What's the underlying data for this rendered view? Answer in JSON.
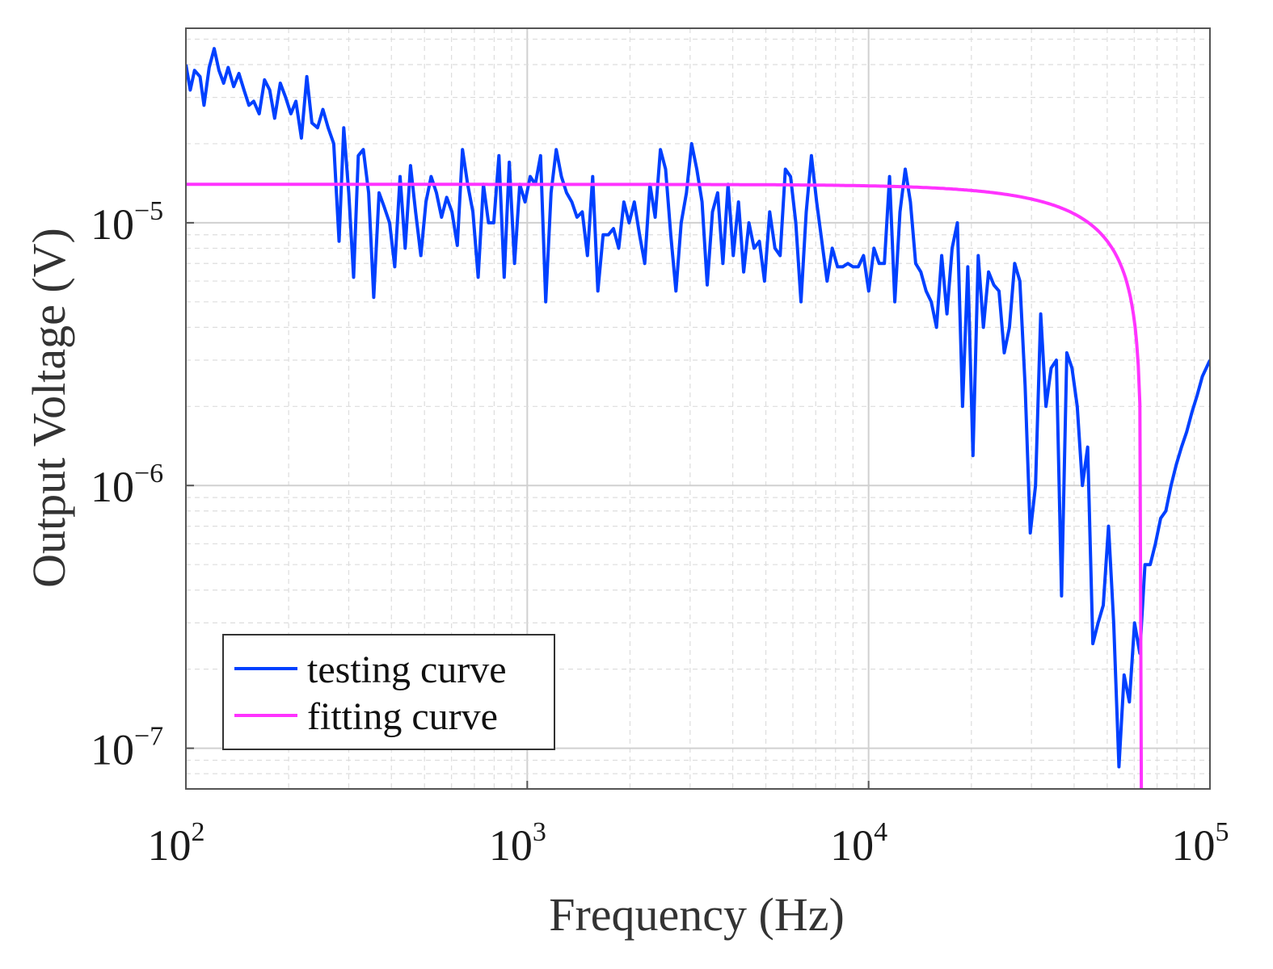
{
  "chart_data": {
    "type": "line",
    "title": "",
    "xlabel": "Frequency (Hz)",
    "ylabel": "Output Voltage (V)",
    "xscale": "log",
    "yscale": "log",
    "xlim": [
      100,
      100000
    ],
    "ylim": [
      7e-08,
      5.5e-05
    ],
    "grid": true,
    "legend_position": "bottom-left",
    "x_ticks": [
      {
        "value": 100,
        "base": "10",
        "exp": "2"
      },
      {
        "value": 1000,
        "base": "10",
        "exp": "3"
      },
      {
        "value": 10000,
        "base": "10",
        "exp": "4"
      },
      {
        "value": 100000,
        "base": "10",
        "exp": "5"
      }
    ],
    "y_ticks": [
      {
        "value": 1e-07,
        "base": "10",
        "exp": "−7"
      },
      {
        "value": 1e-06,
        "base": "10",
        "exp": "−6"
      },
      {
        "value": 1e-05,
        "base": "10",
        "exp": "−5"
      }
    ],
    "series": [
      {
        "name": "testing curve",
        "color": "#0040ff",
        "points": [
          [
            100,
            4e-05
          ],
          [
            103,
            3.2e-05
          ],
          [
            106,
            3.8e-05
          ],
          [
            110,
            3.6e-05
          ],
          [
            113,
            2.8e-05
          ],
          [
            117,
            3.9e-05
          ],
          [
            121,
            4.6e-05
          ],
          [
            125,
            3.8e-05
          ],
          [
            129,
            3.4e-05
          ],
          [
            133,
            3.9e-05
          ],
          [
            138,
            3.3e-05
          ],
          [
            143,
            3.7e-05
          ],
          [
            148,
            3.2e-05
          ],
          [
            153,
            2.8e-05
          ],
          [
            158,
            2.9e-05
          ],
          [
            164,
            2.6e-05
          ],
          [
            170,
            3.5e-05
          ],
          [
            176,
            3.2e-05
          ],
          [
            182,
            2.5e-05
          ],
          [
            189,
            3.4e-05
          ],
          [
            196,
            3e-05
          ],
          [
            203,
            2.6e-05
          ],
          [
            210,
            2.9e-05
          ],
          [
            218,
            2.1e-05
          ],
          [
            226,
            3.6e-05
          ],
          [
            234,
            2.4e-05
          ],
          [
            243,
            2.3e-05
          ],
          [
            252,
            2.7e-05
          ],
          [
            261,
            2.3e-05
          ],
          [
            271,
            2e-05
          ],
          [
            281,
            8.5e-06
          ],
          [
            290,
            2.3e-05
          ],
          [
            300,
            1.3e-05
          ],
          [
            310,
            6.2e-06
          ],
          [
            320,
            1.8e-05
          ],
          [
            331,
            1.9e-05
          ],
          [
            343,
            1.3e-05
          ],
          [
            355,
            5.2e-06
          ],
          [
            368,
            1.3e-05
          ],
          [
            381,
            1.15e-05
          ],
          [
            395,
            1e-05
          ],
          [
            409,
            6.8e-06
          ],
          [
            424,
            1.5e-05
          ],
          [
            439,
            8e-06
          ],
          [
            455,
            1.65e-05
          ],
          [
            471,
            1.1e-05
          ],
          [
            488,
            7.5e-06
          ],
          [
            505,
            1.2e-05
          ],
          [
            523,
            1.5e-05
          ],
          [
            542,
            1.3e-05
          ],
          [
            561,
            1.05e-05
          ],
          [
            581,
            1.25e-05
          ],
          [
            602,
            1.1e-05
          ],
          [
            624,
            8.2e-06
          ],
          [
            646,
            1.9e-05
          ],
          [
            669,
            1.4e-05
          ],
          [
            693,
            1.1e-05
          ],
          [
            718,
            6.2e-06
          ],
          [
            744,
            1.4e-05
          ],
          [
            770,
            1e-05
          ],
          [
            798,
            1e-05
          ],
          [
            826,
            1.8e-05
          ],
          [
            856,
            6.2e-06
          ],
          [
            886,
            1.7e-05
          ],
          [
            918,
            7e-06
          ],
          [
            951,
            1.4e-05
          ],
          [
            985,
            1.2e-05
          ],
          [
            1020,
            1.5e-05
          ],
          [
            1056,
            1.4e-05
          ],
          [
            1094,
            1.8e-05
          ],
          [
            1133,
            5e-06
          ],
          [
            1174,
            1.3e-05
          ],
          [
            1216,
            1.9e-05
          ],
          [
            1259,
            1.5e-05
          ],
          [
            1304,
            1.3e-05
          ],
          [
            1351,
            1.2e-05
          ],
          [
            1399,
            1.05e-05
          ],
          [
            1449,
            1.1e-05
          ],
          [
            1501,
            7.5e-06
          ],
          [
            1555,
            1.5e-05
          ],
          [
            1610,
            5.5e-06
          ],
          [
            1668,
            9e-06
          ],
          [
            1728,
            9e-06
          ],
          [
            1789,
            9.5e-06
          ],
          [
            1853,
            8e-06
          ],
          [
            1919,
            1.2e-05
          ],
          [
            1988,
            1e-05
          ],
          [
            2059,
            1.2e-05
          ],
          [
            2133,
            9e-06
          ],
          [
            2209,
            7e-06
          ],
          [
            2288,
            1.4e-05
          ],
          [
            2370,
            1.05e-05
          ],
          [
            2455,
            1.9e-05
          ],
          [
            2542,
            1.6e-05
          ],
          [
            2633,
            9e-06
          ],
          [
            2727,
            5.5e-06
          ],
          [
            2825,
            1e-05
          ],
          [
            2926,
            1.3e-05
          ],
          [
            3030,
            2e-05
          ],
          [
            3139,
            1.6e-05
          ],
          [
            3251,
            1.2e-05
          ],
          [
            3367,
            5.8e-06
          ],
          [
            3488,
            1.1e-05
          ],
          [
            3612,
            1.3e-05
          ],
          [
            3742,
            7e-06
          ],
          [
            3875,
            1.4e-05
          ],
          [
            4014,
            7.5e-06
          ],
          [
            4158,
            1.2e-05
          ],
          [
            4306,
            6.5e-06
          ],
          [
            4460,
            1e-05
          ],
          [
            4620,
            8e-06
          ],
          [
            4785,
            8.5e-06
          ],
          [
            4956,
            6e-06
          ],
          [
            5133,
            1.1e-05
          ],
          [
            5317,
            8e-06
          ],
          [
            5507,
            7.5e-06
          ],
          [
            5704,
            1.6e-05
          ],
          [
            5908,
            1.5e-05
          ],
          [
            6119,
            1e-05
          ],
          [
            6338,
            5e-06
          ],
          [
            6565,
            1.1e-05
          ],
          [
            6799,
            1.8e-05
          ],
          [
            7043,
            1.2e-05
          ],
          [
            7295,
            8.5e-06
          ],
          [
            7556,
            6e-06
          ],
          [
            7826,
            8e-06
          ],
          [
            8106,
            6.8e-06
          ],
          [
            8396,
            6.8e-06
          ],
          [
            8696,
            7e-06
          ],
          [
            9007,
            6.8e-06
          ],
          [
            9330,
            6.8e-06
          ],
          [
            9663,
            7.5e-06
          ],
          [
            10009,
            5.5e-06
          ],
          [
            10367,
            8e-06
          ],
          [
            10738,
            7e-06
          ],
          [
            11122,
            7e-06
          ],
          [
            11520,
            1.5e-05
          ],
          [
            11933,
            5e-06
          ],
          [
            12359,
            1.1e-05
          ],
          [
            12802,
            1.6e-05
          ],
          [
            13260,
            1.2e-05
          ],
          [
            13734,
            7e-06
          ],
          [
            14226,
            6.5e-06
          ],
          [
            14735,
            5.5e-06
          ],
          [
            15262,
            5e-06
          ],
          [
            15808,
            4e-06
          ],
          [
            16374,
            7.5e-06
          ],
          [
            16960,
            4.5e-06
          ],
          [
            17567,
            8e-06
          ],
          [
            18195,
            1e-05
          ],
          [
            18846,
            2e-06
          ],
          [
            19521,
            6.8e-06
          ],
          [
            20219,
            1.3e-06
          ],
          [
            20943,
            7.5e-06
          ],
          [
            21692,
            4e-06
          ],
          [
            22468,
            6.5e-06
          ],
          [
            23272,
            5.8e-06
          ],
          [
            24105,
            5.5e-06
          ],
          [
            24967,
            3.2e-06
          ],
          [
            25861,
            4e-06
          ],
          [
            26786,
            7e-06
          ],
          [
            27745,
            6e-06
          ],
          [
            28738,
            2.4e-06
          ],
          [
            29766,
            6.6e-07
          ],
          [
            30831,
            1e-06
          ],
          [
            31935,
            4.5e-06
          ],
          [
            33078,
            2e-06
          ],
          [
            34261,
            2.8e-06
          ],
          [
            35487,
            3e-06
          ],
          [
            36757,
            3.8e-07
          ],
          [
            38073,
            3.2e-06
          ],
          [
            39435,
            2.8e-06
          ],
          [
            40847,
            2e-06
          ],
          [
            42308,
            1e-06
          ],
          [
            43822,
            1.4e-06
          ],
          [
            45390,
            2.5e-07
          ],
          [
            47015,
            3e-07
          ],
          [
            48697,
            3.5e-07
          ],
          [
            50440,
            7e-07
          ],
          [
            52245,
            3e-07
          ],
          [
            54115,
            8.5e-08
          ],
          [
            56051,
            1.9e-07
          ],
          [
            58057,
            1.5e-07
          ],
          [
            60135,
            3e-07
          ],
          [
            62287,
            2.3e-07
          ],
          [
            64516,
            5e-07
          ],
          [
            66825,
            5e-07
          ],
          [
            69216,
            6e-07
          ],
          [
            71694,
            7.5e-07
          ],
          [
            74259,
            8e-07
          ],
          [
            76917,
            1e-06
          ],
          [
            79670,
            1.2e-06
          ],
          [
            82521,
            1.4e-06
          ],
          [
            85474,
            1.6e-06
          ],
          [
            88533,
            1.9e-06
          ],
          [
            91702,
            2.2e-06
          ],
          [
            94984,
            2.6e-06
          ],
          [
            100000,
            3e-06
          ]
        ]
      },
      {
        "name": "fitting curve",
        "color": "#ff33ff",
        "model": {
          "v0": 1.4e-05,
          "cutoff_hz": 63000
        }
      }
    ]
  }
}
